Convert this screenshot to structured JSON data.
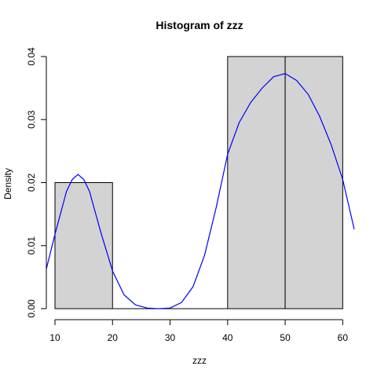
{
  "chart_data": {
    "type": "bar",
    "title": "Histogram of zzz",
    "xlabel": "zzz",
    "ylabel": "Density",
    "bins": [
      {
        "x0": 10,
        "x1": 20,
        "density": 0.02
      },
      {
        "x0": 20,
        "x1": 30,
        "density": 0.0
      },
      {
        "x0": 30,
        "x1": 40,
        "density": 0.0
      },
      {
        "x0": 40,
        "x1": 50,
        "density": 0.04
      },
      {
        "x0": 50,
        "x1": 60,
        "density": 0.04
      }
    ],
    "xlim": [
      8.5,
      62
    ],
    "ylim": [
      0,
      0.04
    ],
    "x_ticks": [
      10,
      20,
      30,
      40,
      50,
      60
    ],
    "x_tick_labels": [
      "10",
      "20",
      "30",
      "40",
      "50",
      "60"
    ],
    "y_ticks": [
      0,
      0.01,
      0.02,
      0.03,
      0.04
    ],
    "y_tick_labels": [
      "0.00",
      "0.01",
      "0.02",
      "0.03",
      "0.04"
    ],
    "density_curve": {
      "color": "#0000ff",
      "x": [
        8.5,
        10,
        12,
        13,
        14,
        15,
        16,
        18,
        20,
        22,
        24,
        26,
        28,
        30,
        32,
        34,
        36,
        38,
        40,
        42,
        44,
        46,
        48,
        50,
        52,
        54,
        56,
        58,
        60,
        62
      ],
      "y": [
        0.0063,
        0.0118,
        0.0186,
        0.0205,
        0.0213,
        0.0205,
        0.0186,
        0.012,
        0.006,
        0.0022,
        0.0006,
        0.0001,
        0.0,
        0.0001,
        0.001,
        0.0035,
        0.0085,
        0.016,
        0.0245,
        0.0295,
        0.0327,
        0.035,
        0.0368,
        0.0373,
        0.0362,
        0.034,
        0.0305,
        0.026,
        0.0205,
        0.0126
      ]
    },
    "bar_fill": "#d3d3d3",
    "grid": false
  }
}
